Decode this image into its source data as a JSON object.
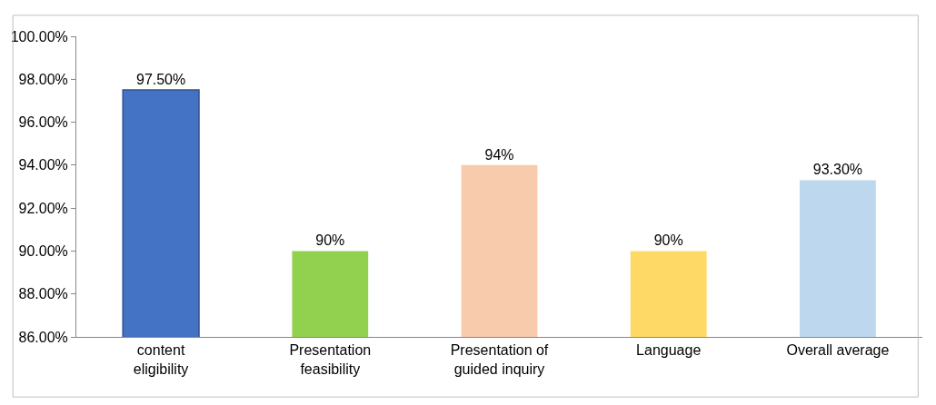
{
  "chart_data": {
    "type": "bar",
    "categories": [
      "content eligibility",
      "Presentation feasibility",
      "Presentation of guided inquiry",
      "Language",
      "Overall average"
    ],
    "values": [
      97.5,
      90,
      94,
      90,
      93.3
    ],
    "colors": [
      "#4472c4",
      "#92d050",
      "#f8cbad",
      "#ffd966",
      "#bdd7ee"
    ],
    "value_labels": [
      "97.50%",
      "90%",
      "94%",
      "90%",
      "93.30%"
    ],
    "ylim": [
      86,
      100
    ],
    "yticks": [
      {
        "value": 86,
        "label": "86.00%"
      },
      {
        "value": 88,
        "label": "88.00%"
      },
      {
        "value": 90,
        "label": "90.00%"
      },
      {
        "value": 92,
        "label": "92.00%"
      },
      {
        "value": 94,
        "label": "94.00%"
      },
      {
        "value": 96,
        "label": "96.00%"
      },
      {
        "value": 98,
        "label": "98.00%"
      },
      {
        "value": 100,
        "label": "100.00%"
      }
    ],
    "legend": false
  }
}
